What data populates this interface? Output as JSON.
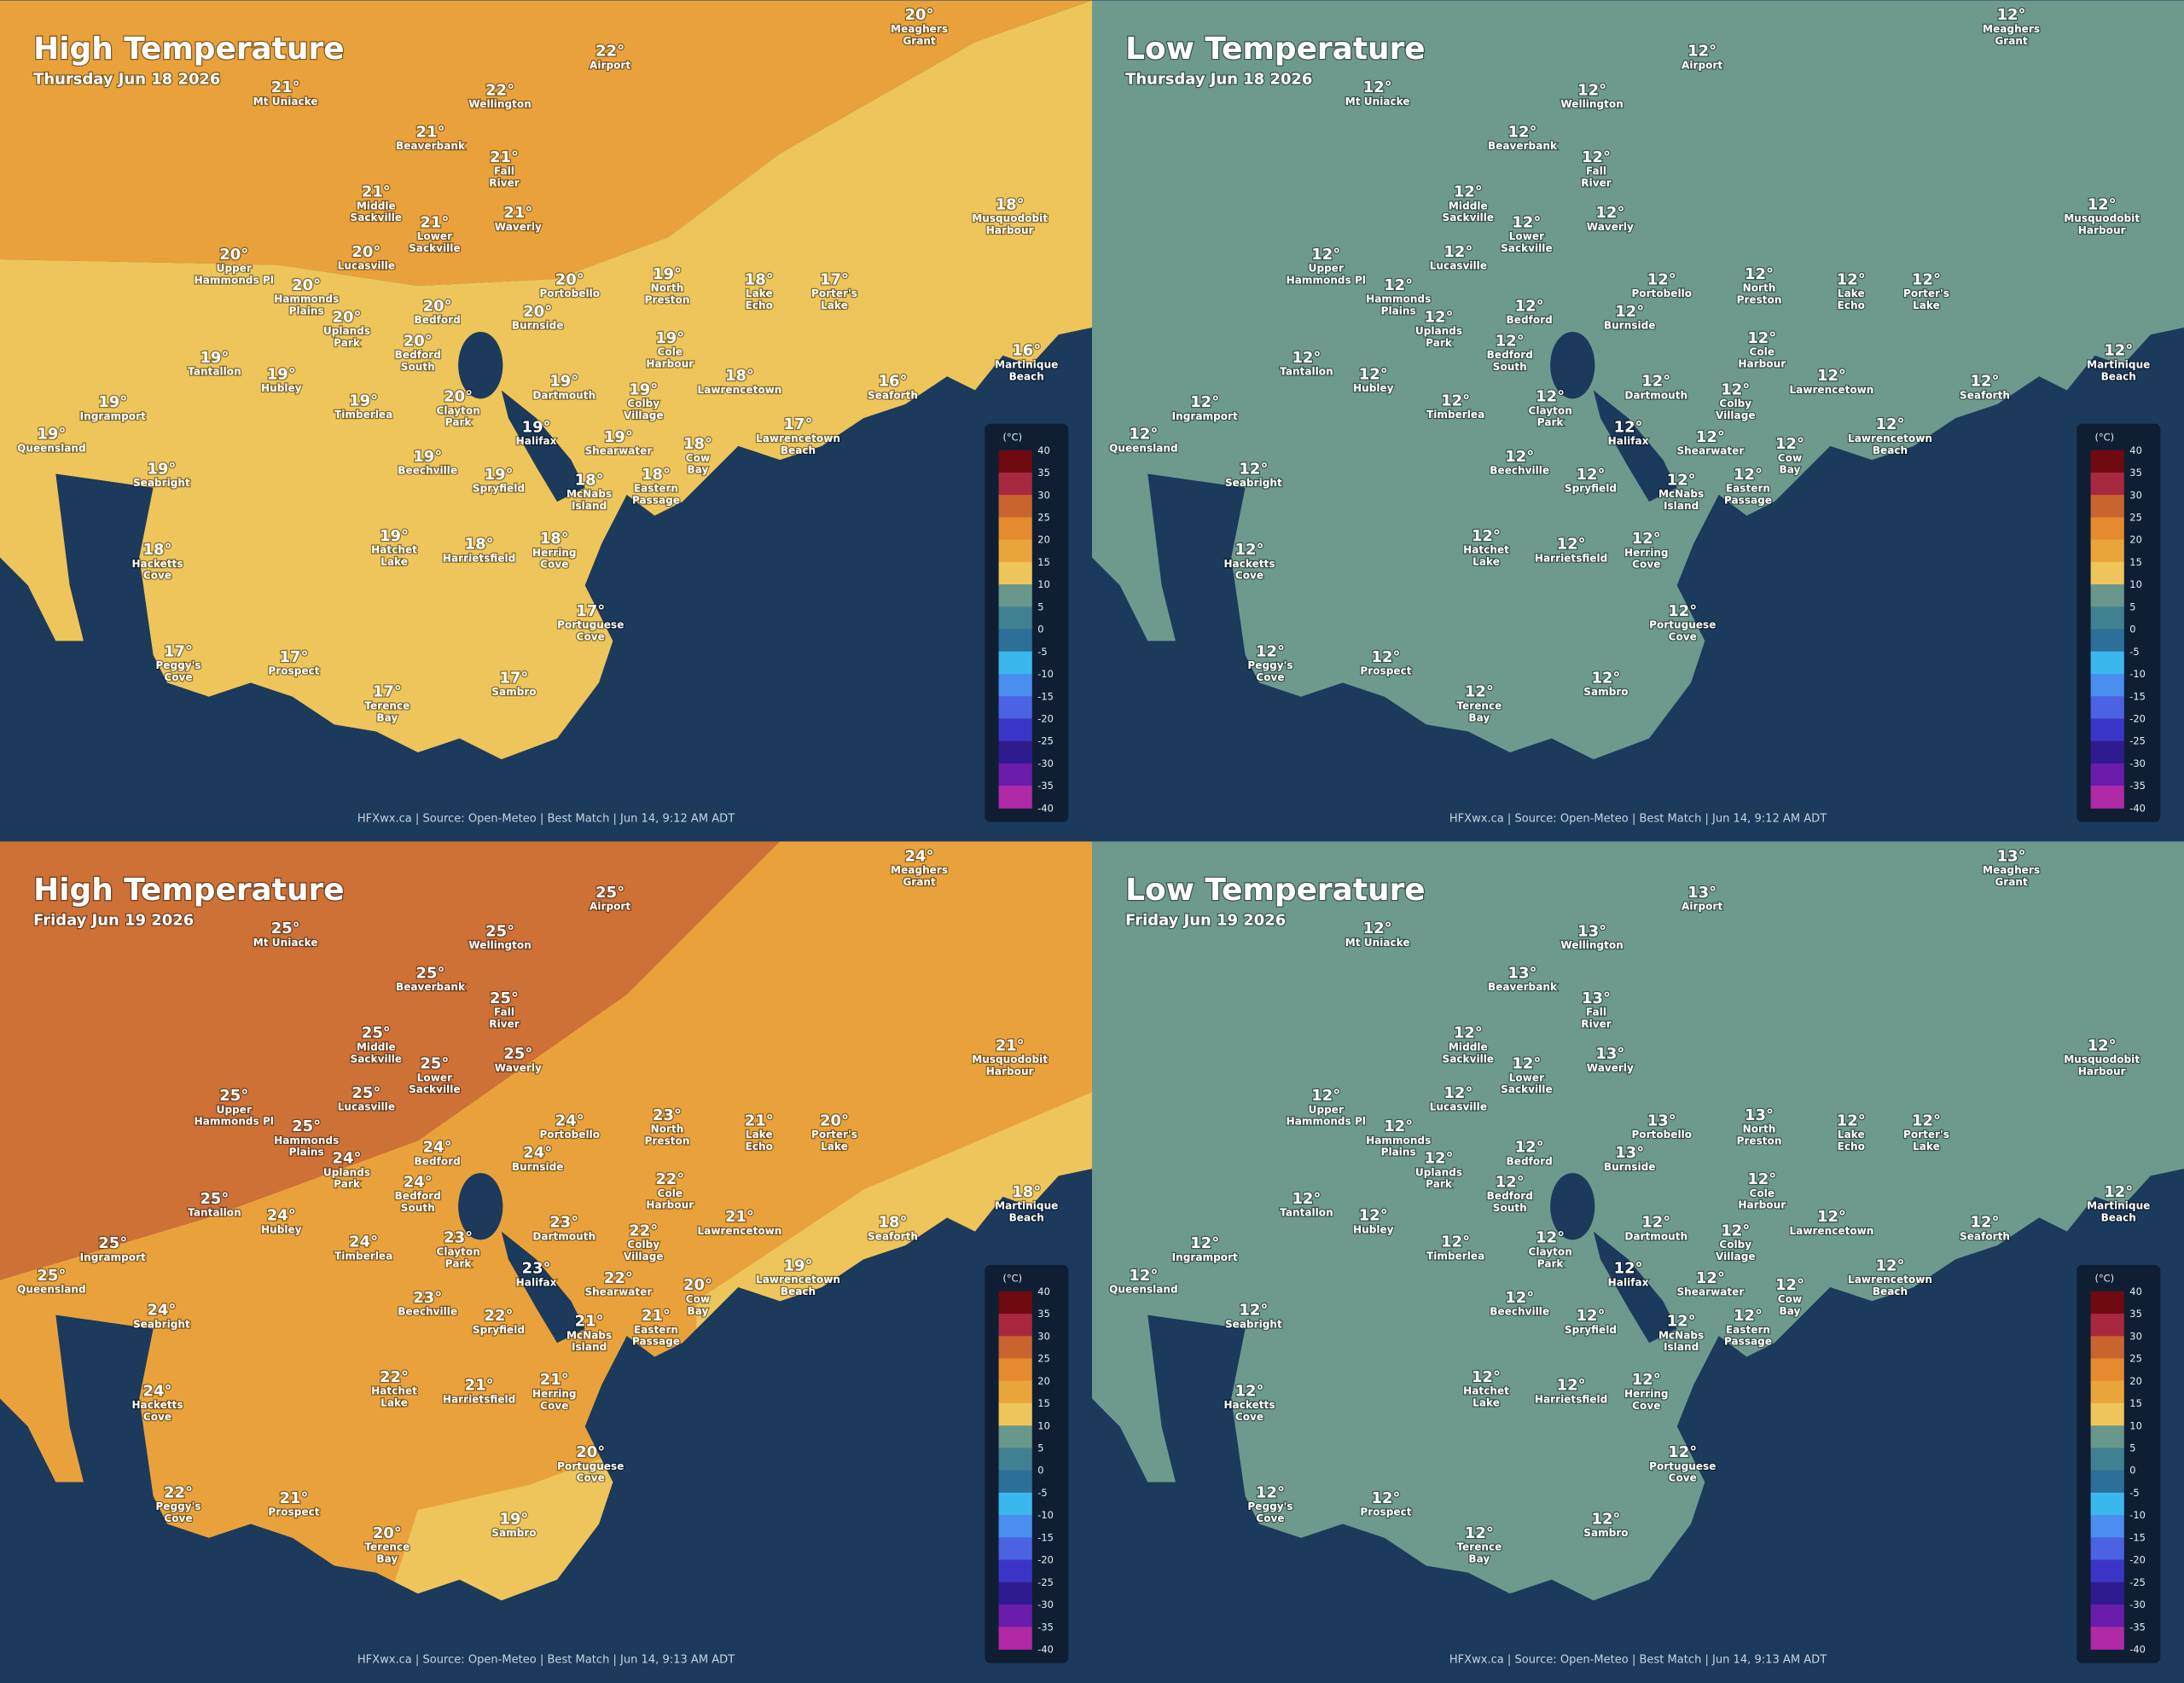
{
  "places": [
    [
      "Meaghers",
      "Grant"
    ],
    [
      "Airport"
    ],
    [
      "Mt Uniacke"
    ],
    [
      "Wellington"
    ],
    [
      "Beaverbank"
    ],
    [
      "Fall",
      "River"
    ],
    [
      "Middle",
      "Sackville"
    ],
    [
      "Waverly"
    ],
    [
      "Lower",
      "Sackville"
    ],
    [
      "Musquodobit",
      "Harbour"
    ],
    [
      "Upper",
      "Hammonds Pl"
    ],
    [
      "Lucasville"
    ],
    [
      "Hammonds",
      "Plains"
    ],
    [
      "Portobello"
    ],
    [
      "North",
      "Preston"
    ],
    [
      "Lake",
      "Echo"
    ],
    [
      "Porter's",
      "Lake"
    ],
    [
      "Uplands",
      "Park"
    ],
    [
      "Bedford"
    ],
    [
      "Burnside"
    ],
    [
      "Bedford",
      "South"
    ],
    [
      "Cole",
      "Harbour"
    ],
    [
      "Martinique",
      "Beach"
    ],
    [
      "Tantallon"
    ],
    [
      "Hubley"
    ],
    [
      "Dartmouth"
    ],
    [
      "Colby",
      "Village"
    ],
    [
      "Lawrencetown"
    ],
    [
      "Seaforth"
    ],
    [
      "Ingramport"
    ],
    [
      "Timberlea"
    ],
    [
      "Clayton",
      "Park"
    ],
    [
      "Queensland"
    ],
    [
      "Halifax"
    ],
    [
      "Shearwater"
    ],
    [
      "Lawrencetown",
      "Beach"
    ],
    [
      "Cow",
      "Bay"
    ],
    [
      "Beechville"
    ],
    [
      "Seabright"
    ],
    [
      "Spryfield"
    ],
    [
      "McNabs",
      "Island"
    ],
    [
      "Eastern",
      "Passage"
    ],
    [
      "Hatchet",
      "Lake"
    ],
    [
      "Harrietsfield"
    ],
    [
      "Herring",
      "Cove"
    ],
    [
      "Hacketts",
      "Cove"
    ],
    [
      "Portuguese",
      "Cove"
    ],
    [
      "Peggy's",
      "Cove"
    ],
    [
      "Prospect"
    ],
    [
      "Sambro"
    ],
    [
      "Terence",
      "Bay"
    ]
  ],
  "panels": [
    {
      "title": "High Temperature",
      "date": "Thursday Jun 18 2026",
      "footer": "HFXwx.ca | Source: Open-Meteo | Best Match | Jun 14, 9:12 AM ADT",
      "temps": [
        "20°",
        "22°",
        "21°",
        "22°",
        "21°",
        "21°",
        "21°",
        "21°",
        "21°",
        "18°",
        "20°",
        "20°",
        "20°",
        "20°",
        "19°",
        "18°",
        "17°",
        "20°",
        "20°",
        "20°",
        "20°",
        "19°",
        "16°",
        "19°",
        "19°",
        "19°",
        "19°",
        "18°",
        "16°",
        "19°",
        "19°",
        "20°",
        "19°",
        "19°",
        "19°",
        "17°",
        "18°",
        "19°",
        "19°",
        "19°",
        "18°",
        "18°",
        "19°",
        "18°",
        "18°",
        "18°",
        "17°",
        "17°",
        "17°",
        "17°",
        "17°"
      ]
    },
    {
      "title": "Low Temperature",
      "date": "Thursday Jun 18 2026",
      "footer": "HFXwx.ca | Source: Open-Meteo | Best Match | Jun 14, 9:12 AM ADT",
      "temps": [
        "12°",
        "12°",
        "12°",
        "12°",
        "12°",
        "12°",
        "12°",
        "12°",
        "12°",
        "12°",
        "12°",
        "12°",
        "12°",
        "12°",
        "12°",
        "12°",
        "12°",
        "12°",
        "12°",
        "12°",
        "12°",
        "12°",
        "12°",
        "12°",
        "12°",
        "12°",
        "12°",
        "12°",
        "12°",
        "12°",
        "12°",
        "12°",
        "12°",
        "12°",
        "12°",
        "12°",
        "12°",
        "12°",
        "12°",
        "12°",
        "12°",
        "12°",
        "12°",
        "12°",
        "12°",
        "12°",
        "12°",
        "12°",
        "12°",
        "12°",
        "12°"
      ]
    },
    {
      "title": "High Temperature",
      "date": "Friday Jun 19 2026",
      "footer": "HFXwx.ca | Source: Open-Meteo | Best Match | Jun 14, 9:13 AM ADT",
      "temps": [
        "24°",
        "25°",
        "25°",
        "25°",
        "25°",
        "25°",
        "25°",
        "25°",
        "25°",
        "21°",
        "25°",
        "25°",
        "25°",
        "24°",
        "23°",
        "21°",
        "20°",
        "24°",
        "24°",
        "24°",
        "24°",
        "22°",
        "18°",
        "25°",
        "24°",
        "23°",
        "22°",
        "21°",
        "18°",
        "25°",
        "24°",
        "23°",
        "25°",
        "23°",
        "22°",
        "19°",
        "20°",
        "23°",
        "24°",
        "22°",
        "21°",
        "21°",
        "22°",
        "21°",
        "21°",
        "24°",
        "20°",
        "22°",
        "21°",
        "19°",
        "20°"
      ]
    },
    {
      "title": "Low Temperature",
      "date": "Friday Jun 19 2026",
      "footer": "HFXwx.ca | Source: Open-Meteo | Best Match | Jun 14, 9:13 AM ADT",
      "temps": [
        "13°",
        "13°",
        "12°",
        "13°",
        "13°",
        "13°",
        "12°",
        "13°",
        "12°",
        "12°",
        "12°",
        "12°",
        "12°",
        "13°",
        "13°",
        "12°",
        "12°",
        "12°",
        "12°",
        "13°",
        "12°",
        "12°",
        "12°",
        "12°",
        "12°",
        "12°",
        "12°",
        "12°",
        "12°",
        "12°",
        "12°",
        "12°",
        "12°",
        "12°",
        "12°",
        "12°",
        "12°",
        "12°",
        "12°",
        "12°",
        "12°",
        "12°",
        "12°",
        "12°",
        "12°",
        "12°",
        "12°",
        "12°",
        "12°",
        "12°",
        "12°"
      ]
    }
  ],
  "legend": {
    "unit": "(°C)",
    "ticks": [
      40,
      35,
      30,
      25,
      20,
      15,
      10,
      5,
      0,
      -5,
      -10,
      -15,
      -20,
      -25,
      -30,
      -35,
      -40
    ],
    "colors": [
      "#6e0a10",
      "#a8283f",
      "#c9642e",
      "#e58a2e",
      "#eaa53a",
      "#eec55a",
      "#6a978c",
      "#3f8091",
      "#2c6f98",
      "#3ab8ee",
      "#4a8ef0",
      "#4b62e3",
      "#3b35c7",
      "#2e1b8f",
      "#6a1cab",
      "#b02aa8"
    ]
  }
}
